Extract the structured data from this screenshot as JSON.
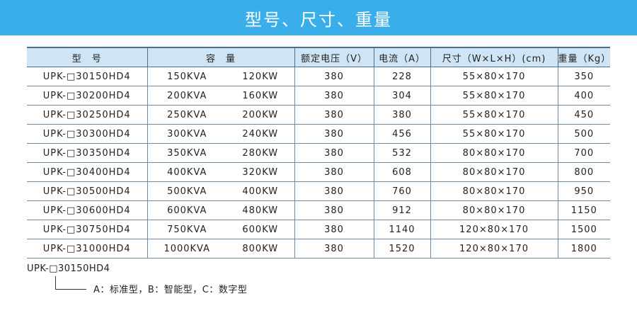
{
  "banner": {
    "title": "型号、尺寸、重量"
  },
  "table": {
    "headers": {
      "model": "型　号",
      "capacity": "容　量",
      "voltage": "额定电压（V）",
      "current": "电流（A）",
      "dimensions": "尺寸（W×L×H）(cm)",
      "weight": "重量（Kg）"
    },
    "rows": [
      {
        "model": "UPK-□30150HD4",
        "kva": "150KVA",
        "kw": "120KW",
        "voltage": "380",
        "current": "228",
        "dims": "55×80×170",
        "weight": "350"
      },
      {
        "model": "UPK-□30200HD4",
        "kva": "200KVA",
        "kw": "160KW",
        "voltage": "380",
        "current": "304",
        "dims": "55×80×170",
        "weight": "400"
      },
      {
        "model": "UPK-□30250HD4",
        "kva": "250KVA",
        "kw": "200KW",
        "voltage": "380",
        "current": "380",
        "dims": "55×80×170",
        "weight": "450"
      },
      {
        "model": "UPK-□30300HD4",
        "kva": "300KVA",
        "kw": "240KW",
        "voltage": "380",
        "current": "456",
        "dims": "55×80×170",
        "weight": "500"
      },
      {
        "model": "UPK-□30350HD4",
        "kva": "350KVA",
        "kw": "280KW",
        "voltage": "380",
        "current": "532",
        "dims": "80×80×170",
        "weight": "700"
      },
      {
        "model": "UPK-□30400HD4",
        "kva": "400KVA",
        "kw": "320KW",
        "voltage": "380",
        "current": "608",
        "dims": "80×80×170",
        "weight": "800"
      },
      {
        "model": "UPK-□30500HD4",
        "kva": "500KVA",
        "kw": "400KW",
        "voltage": "380",
        "current": "760",
        "dims": "80×80×170",
        "weight": "950"
      },
      {
        "model": "UPK-□30600HD4",
        "kva": "600KVA",
        "kw": "480KW",
        "voltage": "380",
        "current": "912",
        "dims": "80×80×170",
        "weight": "1150"
      },
      {
        "model": "UPK-□30750HD4",
        "kva": "750KVA",
        "kw": "600KW",
        "voltage": "380",
        "current": "1140",
        "dims": "120×80×170",
        "weight": "1500"
      },
      {
        "model": "UPK-□31000HD4",
        "kva": "1000KVA",
        "kw": "800KW",
        "voltage": "380",
        "current": "1520",
        "dims": "120×80×170",
        "weight": "1800"
      }
    ]
  },
  "note": {
    "example_model": "UPK-□30150HD4",
    "legend": "A：标准型，B：智能型，C：数字型"
  },
  "colors": {
    "banner": "#3aaeea",
    "header_bg": "#cfe4f4",
    "border": "#4a6f8c"
  }
}
